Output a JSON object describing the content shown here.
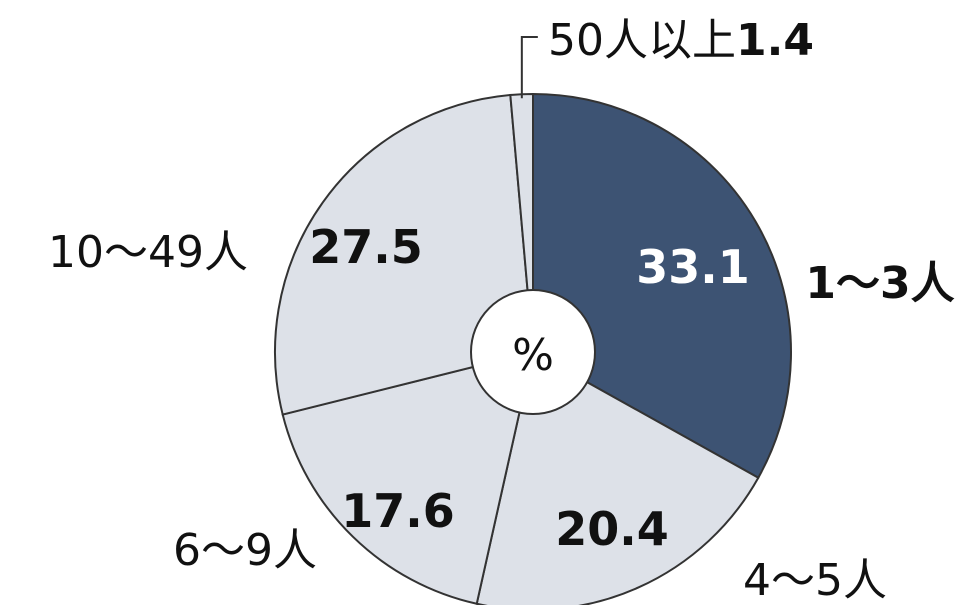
{
  "chart_data": {
    "type": "pie",
    "unit_label": "%",
    "slices": [
      {
        "category": "1～3人",
        "value": 33.1,
        "value_label": "33.1",
        "color": "#3d5373",
        "text_color": "#ffffff",
        "category_bold": true
      },
      {
        "category": "4～5人",
        "value": 20.4,
        "value_label": "20.4",
        "color": "#dde1e8",
        "text_color": "#111111",
        "category_bold": false
      },
      {
        "category": "6～9人",
        "value": 17.6,
        "value_label": "17.6",
        "color": "#dde1e8",
        "text_color": "#111111",
        "category_bold": false
      },
      {
        "category": "10～49人",
        "value": 27.5,
        "value_label": "27.5",
        "color": "#dde1e8",
        "text_color": "#111111",
        "category_bold": false
      },
      {
        "category": "50人以上",
        "value": 1.4,
        "value_label": "1.4",
        "color": "#dde1e8",
        "text_color": "#111111",
        "category_bold": false
      }
    ],
    "start_angle_deg": 0,
    "direction": "clockwise",
    "border_color": "#333333"
  }
}
